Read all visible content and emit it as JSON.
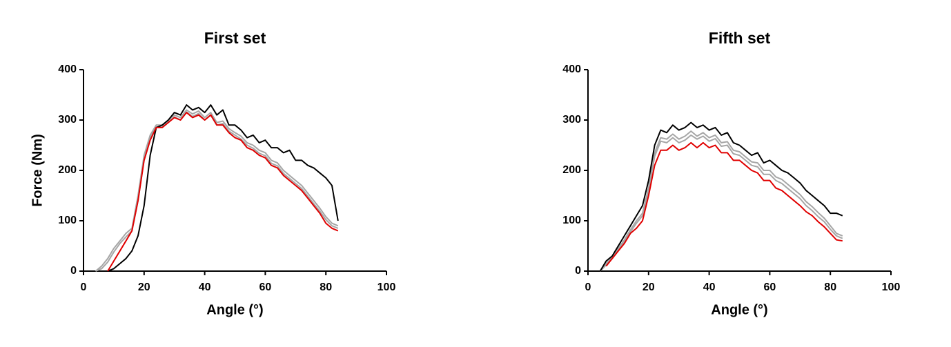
{
  "chart_data": [
    {
      "type": "line",
      "title": "First set",
      "xlabel": "Angle (°)",
      "ylabel": "Force (Nm)",
      "x": [
        4,
        6,
        8,
        10,
        12,
        14,
        16,
        18,
        20,
        22,
        24,
        26,
        28,
        30,
        32,
        34,
        36,
        38,
        40,
        42,
        44,
        46,
        48,
        50,
        52,
        54,
        56,
        58,
        60,
        62,
        64,
        66,
        68,
        70,
        72,
        74,
        76,
        78,
        80,
        82,
        84
      ],
      "series": [
        {
          "color": "#a6a6a6",
          "values": [
            0,
            10,
            25,
            45,
            60,
            75,
            85,
            150,
            230,
            270,
            290,
            290,
            300,
            310,
            305,
            320,
            312,
            318,
            305,
            315,
            295,
            298,
            283,
            275,
            268,
            255,
            250,
            240,
            235,
            220,
            215,
            200,
            190,
            180,
            170,
            155,
            140,
            125,
            108,
            95,
            90
          ]
        },
        {
          "color": "#a6a6a6",
          "values": [
            0,
            5,
            18,
            38,
            55,
            68,
            80,
            140,
            222,
            265,
            286,
            286,
            296,
            306,
            300,
            316,
            307,
            313,
            300,
            310,
            290,
            293,
            278,
            270,
            262,
            250,
            244,
            234,
            229,
            214,
            209,
            194,
            184,
            174,
            164,
            149,
            134,
            119,
            102,
            90,
            85
          ]
        },
        {
          "color": "#000000",
          "values": [
            null,
            null,
            0,
            5,
            15,
            25,
            40,
            70,
            130,
            230,
            285,
            290,
            300,
            315,
            310,
            330,
            320,
            325,
            315,
            330,
            310,
            320,
            290,
            290,
            280,
            265,
            270,
            255,
            260,
            245,
            245,
            235,
            240,
            220,
            220,
            210,
            205,
            195,
            185,
            170,
            100
          ]
        },
        {
          "color": "#e00000",
          "values": [
            null,
            null,
            0,
            20,
            40,
            60,
            80,
            140,
            220,
            260,
            285,
            285,
            295,
            305,
            300,
            315,
            305,
            310,
            300,
            310,
            290,
            290,
            275,
            265,
            260,
            245,
            240,
            230,
            225,
            210,
            205,
            190,
            180,
            170,
            160,
            145,
            130,
            115,
            95,
            85,
            80
          ]
        }
      ],
      "xlim": [
        0,
        100
      ],
      "xticks": [
        0,
        20,
        40,
        60,
        80,
        100
      ],
      "ylim": [
        0,
        400
      ],
      "yticks": [
        0,
        100,
        200,
        300,
        400
      ]
    },
    {
      "type": "line",
      "title": "Fifth set",
      "xlabel": "Angle (°)",
      "x": [
        4,
        6,
        8,
        10,
        12,
        14,
        16,
        18,
        20,
        22,
        24,
        26,
        28,
        30,
        32,
        34,
        36,
        38,
        40,
        42,
        44,
        46,
        48,
        50,
        52,
        54,
        56,
        58,
        60,
        62,
        64,
        66,
        68,
        70,
        72,
        74,
        76,
        78,
        80,
        82,
        84
      ],
      "series": [
        {
          "color": "#a6a6a6",
          "values": [
            0,
            15,
            28,
            45,
            62,
            82,
            100,
            115,
            165,
            235,
            265,
            262,
            272,
            262,
            268,
            278,
            268,
            275,
            265,
            270,
            255,
            257,
            240,
            237,
            227,
            217,
            215,
            200,
            200,
            187,
            182,
            172,
            162,
            152,
            138,
            128,
            116,
            105,
            90,
            75,
            70
          ]
        },
        {
          "color": "#a6a6a6",
          "values": [
            0,
            12,
            25,
            42,
            58,
            78,
            95,
            110,
            160,
            228,
            258,
            255,
            265,
            255,
            260,
            270,
            262,
            268,
            258,
            263,
            248,
            250,
            233,
            230,
            220,
            210,
            207,
            192,
            192,
            180,
            174,
            164,
            154,
            144,
            130,
            120,
            108,
            98,
            83,
            70,
            65
          ]
        },
        {
          "color": "#000000",
          "values": [
            0,
            20,
            30,
            50,
            70,
            90,
            110,
            130,
            180,
            250,
            280,
            275,
            290,
            280,
            285,
            295,
            285,
            290,
            280,
            285,
            270,
            275,
            255,
            250,
            240,
            230,
            235,
            215,
            220,
            210,
            200,
            195,
            185,
            175,
            160,
            150,
            140,
            130,
            115,
            115,
            110
          ]
        },
        {
          "color": "#e00000",
          "values": [
            null,
            10,
            25,
            40,
            55,
            75,
            85,
            100,
            150,
            210,
            240,
            240,
            250,
            240,
            245,
            255,
            245,
            255,
            245,
            250,
            235,
            235,
            220,
            220,
            210,
            200,
            195,
            180,
            180,
            165,
            160,
            150,
            140,
            130,
            118,
            110,
            98,
            88,
            75,
            62,
            60
          ]
        }
      ],
      "xlim": [
        0,
        100
      ],
      "xticks": [
        0,
        20,
        40,
        60,
        80,
        100
      ],
      "ylim": [
        0,
        400
      ],
      "yticks": [
        0,
        100,
        200,
        300,
        400
      ]
    }
  ]
}
